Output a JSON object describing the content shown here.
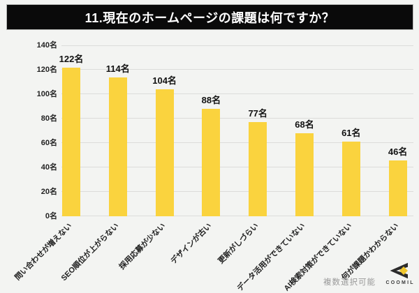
{
  "banner": {
    "title": "11.現在のホームページの課題は何ですか？",
    "background": "#0a0a0a",
    "text_color": "#ffffff"
  },
  "footer": {
    "note": "複数選択可能"
  },
  "logo": {
    "text": "COOMIL",
    "icon": "coomil-chevron-diamond",
    "dark_color": "#2b2b2b",
    "yellow_color": "#efc72e"
  },
  "chart_data": {
    "type": "bar",
    "title": "11.現在のホームページの課題は何ですか？",
    "categories": [
      "問い合わせが増えない",
      "SEO順位が上がらない",
      "採用応募が少ない",
      "デザインが古い",
      "更新がしづらい",
      "データ活用ができていない",
      "AI検索対策ができていない",
      "何が課題かわからない"
    ],
    "values": [
      122,
      114,
      104,
      88,
      77,
      68,
      61,
      46
    ],
    "value_labels": [
      "122名",
      "114名",
      "104名",
      "88名",
      "77名",
      "68名",
      "61名",
      "46名"
    ],
    "unit": "名",
    "ylim": [
      0,
      140
    ],
    "yticks": [
      0,
      20,
      40,
      60,
      80,
      100,
      120,
      140
    ],
    "ytick_labels": [
      "0名",
      "20名",
      "40名",
      "60名",
      "80名",
      "100名",
      "120名",
      "140名"
    ],
    "grid": true,
    "legend_position": "none",
    "xlabel": "",
    "ylabel": "",
    "bar_color": "#fad33e",
    "grid_color": "#dcdcda",
    "background_color": "#f3f4f2",
    "x_tick_rotation_deg": 45
  }
}
